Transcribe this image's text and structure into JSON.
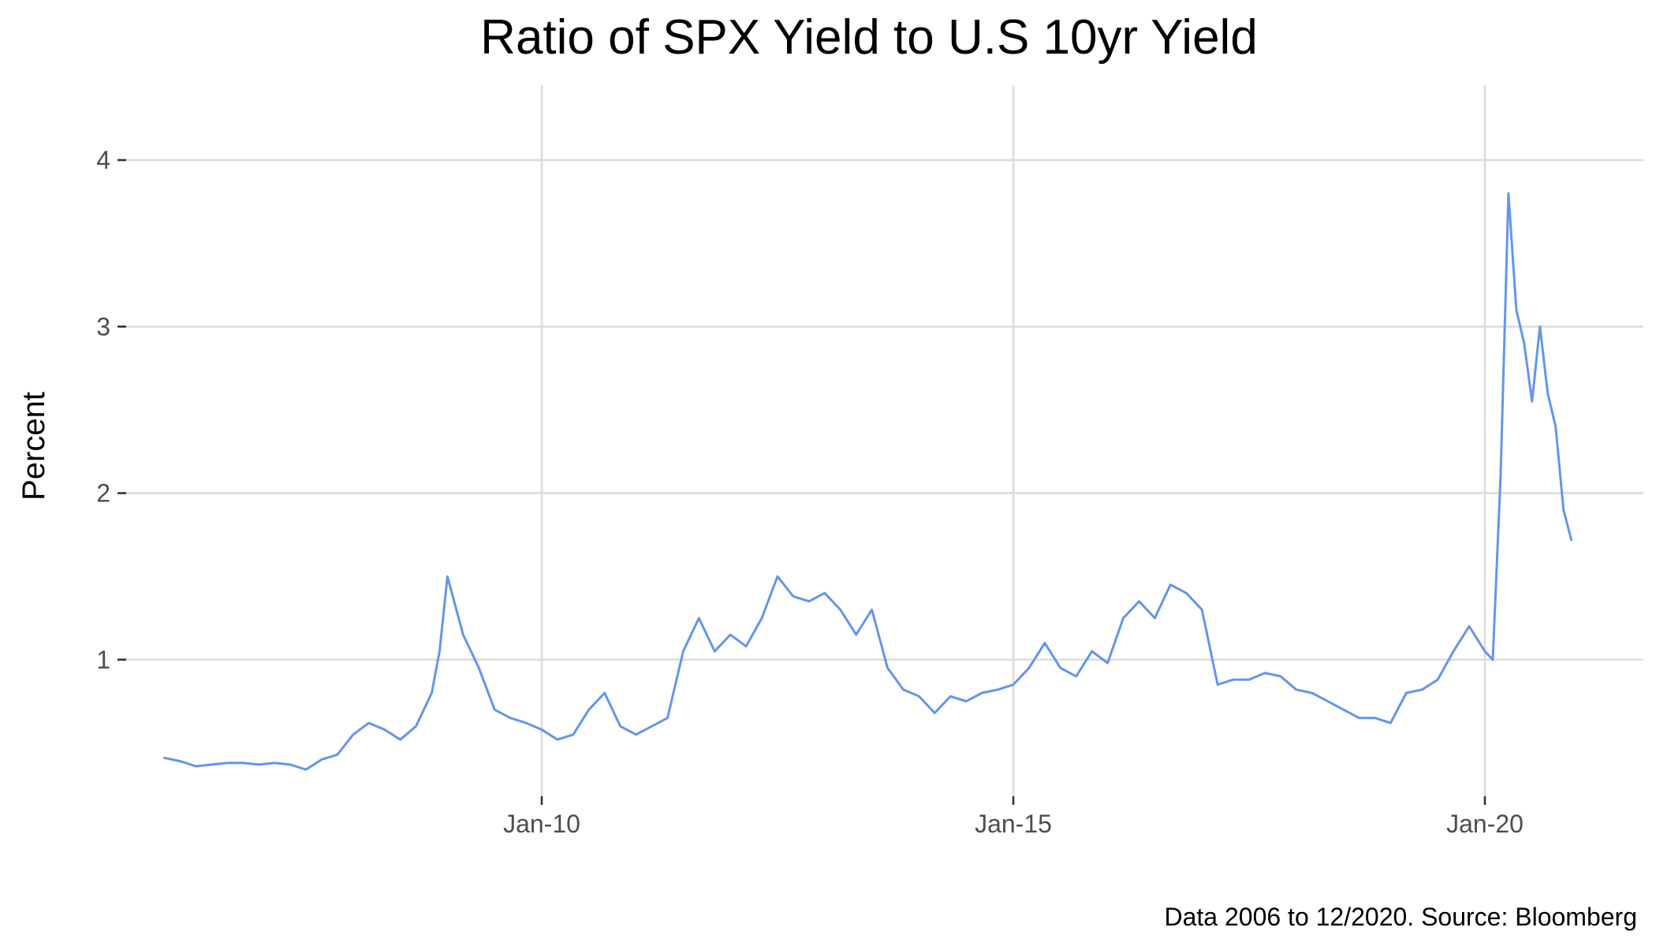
{
  "chart_data": {
    "type": "line",
    "title": "Ratio of SPX Yield to U.S 10yr Yield",
    "xlabel": "",
    "ylabel": "Percent",
    "caption": "Data 2006 to 12/2020. Source: Bloomberg",
    "grid": true,
    "legend": "none",
    "line_color": "#6495ED",
    "x_unit": "date (YYYY-MM)",
    "x_range": [
      "2006-01",
      "2020-12"
    ],
    "ylim": [
      0.18,
      4.45
    ],
    "x_ticks": [
      {
        "date": "2010-01",
        "label": "Jan-10"
      },
      {
        "date": "2015-01",
        "label": "Jan-15"
      },
      {
        "date": "2020-01",
        "label": "Jan-20"
      }
    ],
    "y_ticks": [
      {
        "value": 1,
        "label": "1"
      },
      {
        "value": 2,
        "label": "2"
      },
      {
        "value": 3,
        "label": "3"
      },
      {
        "value": 4,
        "label": "4"
      }
    ],
    "series": [
      {
        "x": [
          "2006-01",
          "2006-03",
          "2006-05",
          "2006-07",
          "2006-09",
          "2006-11",
          "2007-01",
          "2007-03",
          "2007-05",
          "2007-07",
          "2007-09",
          "2007-11",
          "2008-01",
          "2008-03",
          "2008-05",
          "2008-07",
          "2008-09",
          "2008-11",
          "2008-12",
          "2009-01",
          "2009-03",
          "2009-05",
          "2009-07",
          "2009-09",
          "2009-11",
          "2010-01",
          "2010-03",
          "2010-05",
          "2010-07",
          "2010-09",
          "2010-11",
          "2011-01",
          "2011-03",
          "2011-05",
          "2011-07",
          "2011-09",
          "2011-11",
          "2012-01",
          "2012-03",
          "2012-05",
          "2012-07",
          "2012-09",
          "2012-11",
          "2013-01",
          "2013-03",
          "2013-05",
          "2013-07",
          "2013-09",
          "2013-11",
          "2014-01",
          "2014-03",
          "2014-05",
          "2014-07",
          "2014-09",
          "2014-11",
          "2015-01",
          "2015-03",
          "2015-05",
          "2015-07",
          "2015-09",
          "2015-11",
          "2016-01",
          "2016-03",
          "2016-05",
          "2016-07",
          "2016-09",
          "2016-11",
          "2017-01",
          "2017-03",
          "2017-05",
          "2017-07",
          "2017-09",
          "2017-11",
          "2018-01",
          "2018-03",
          "2018-05",
          "2018-07",
          "2018-09",
          "2018-11",
          "2019-01",
          "2019-03",
          "2019-05",
          "2019-07",
          "2019-09",
          "2019-11",
          "2020-01",
          "2020-02",
          "2020-03",
          "2020-04",
          "2020-05",
          "2020-06",
          "2020-07",
          "2020-08",
          "2020-09",
          "2020-10",
          "2020-11",
          "2020-12"
        ],
        "y": [
          0.41,
          0.39,
          0.36,
          0.37,
          0.38,
          0.38,
          0.37,
          0.38,
          0.37,
          0.34,
          0.4,
          0.43,
          0.55,
          0.62,
          0.58,
          0.52,
          0.6,
          0.8,
          1.05,
          1.5,
          1.15,
          0.95,
          0.7,
          0.65,
          0.62,
          0.58,
          0.52,
          0.55,
          0.7,
          0.8,
          0.6,
          0.55,
          0.6,
          0.65,
          1.05,
          1.25,
          1.05,
          1.15,
          1.08,
          1.25,
          1.5,
          1.38,
          1.35,
          1.4,
          1.3,
          1.15,
          1.3,
          0.95,
          0.82,
          0.78,
          0.68,
          0.78,
          0.75,
          0.8,
          0.82,
          0.85,
          0.95,
          1.1,
          0.95,
          0.9,
          1.05,
          0.98,
          1.25,
          1.35,
          1.25,
          1.45,
          1.4,
          1.3,
          0.85,
          0.88,
          0.88,
          0.92,
          0.9,
          0.82,
          0.8,
          0.75,
          0.7,
          0.65,
          0.65,
          0.62,
          0.8,
          0.82,
          0.88,
          1.05,
          1.2,
          1.05,
          1.0,
          2.1,
          3.8,
          3.1,
          2.9,
          2.55,
          3.0,
          2.6,
          2.4,
          1.9,
          1.72
        ]
      }
    ]
  }
}
